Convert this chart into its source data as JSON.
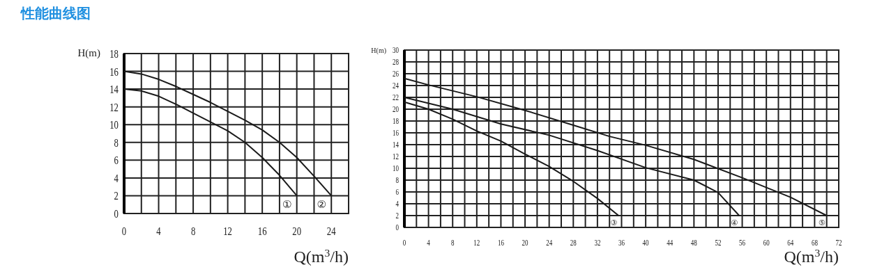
{
  "chart_data": [
    {
      "type": "line",
      "title": "性能曲线图",
      "xlabel": "Q(m$^{3}$/h)",
      "ylabel": "H(m)",
      "grid": true,
      "xlim": [
        0,
        26
      ],
      "ylim": [
        0,
        18
      ],
      "xticks": [
        0,
        {
          "value": 2,
          "label": null
        },
        4,
        {
          "value": 6,
          "label": null
        },
        8,
        {
          "value": 10,
          "label": null
        },
        12,
        {
          "value": 14,
          "label": null
        },
        16,
        {
          "value": 18,
          "label": null
        },
        20,
        {
          "value": 22,
          "label": null
        },
        24,
        {
          "value": 26,
          "label": null
        }
      ],
      "yticks": [
        0,
        2,
        4,
        6,
        8,
        10,
        12,
        14,
        16,
        18
      ],
      "series": [
        {
          "name": "①",
          "color": "#1a1a1a",
          "x": [
            0,
            2,
            4,
            6,
            8,
            10,
            12,
            14,
            16,
            18,
            20
          ],
          "values": [
            14,
            13.8,
            13.2,
            12.3,
            11.3,
            10.3,
            9.3,
            8,
            6.3,
            4.3,
            2
          ]
        },
        {
          "name": "②",
          "color": "#1a1a1a",
          "x": [
            0,
            2,
            4,
            6,
            8,
            10,
            12,
            14,
            16,
            18,
            20,
            22,
            24
          ],
          "values": [
            16,
            15.7,
            15.1,
            14.3,
            13.4,
            12.5,
            11.5,
            10.5,
            9.4,
            8,
            6.3,
            4.2,
            2
          ]
        }
      ]
    },
    {
      "type": "line",
      "xlabel": "Q(m$^{3}$/h)",
      "ylabel": "H(m)",
      "grid": true,
      "xlim": [
        0,
        72
      ],
      "ylim": [
        0,
        30
      ],
      "xticks": [
        0,
        {
          "value": 2,
          "label": null
        },
        4,
        {
          "value": 6,
          "label": null
        },
        8,
        {
          "value": 10,
          "label": null
        },
        12,
        {
          "value": 14,
          "label": null
        },
        16,
        {
          "value": 18,
          "label": null
        },
        20,
        {
          "value": 22,
          "label": null
        },
        24,
        {
          "value": 26,
          "label": null
        },
        28,
        {
          "value": 30,
          "label": null
        },
        32,
        {
          "value": 34,
          "label": null
        },
        36,
        {
          "value": 38,
          "label": null
        },
        40,
        {
          "value": 42,
          "label": null
        },
        44,
        {
          "value": 46,
          "label": null
        },
        48,
        {
          "value": 50,
          "label": null
        },
        52,
        {
          "value": 54,
          "label": null
        },
        56,
        {
          "value": 58,
          "label": null
        },
        60,
        {
          "value": 62,
          "label": null
        },
        64,
        {
          "value": 66,
          "label": null
        },
        68,
        {
          "value": 70,
          "label": null
        },
        72
      ],
      "yticks": [
        0,
        2,
        4,
        6,
        8,
        10,
        12,
        14,
        16,
        18,
        20,
        22,
        24,
        26,
        28,
        30
      ],
      "series": [
        {
          "name": "③",
          "color": "#1a1a1a",
          "x": [
            0,
            4,
            8,
            12,
            16,
            20,
            24,
            28,
            32,
            35.5
          ],
          "values": [
            21.2,
            20,
            18.3,
            16.3,
            14.6,
            12.4,
            10.3,
            7.8,
            4.9,
            2
          ]
        },
        {
          "name": "④",
          "color": "#1a1a1a",
          "x": [
            0,
            8,
            16,
            24,
            32,
            40,
            48,
            52,
            55.5
          ],
          "values": [
            22,
            20,
            17.5,
            15.6,
            13,
            10.1,
            8,
            5.9,
            2
          ]
        },
        {
          "name": "⑤",
          "color": "#1a1a1a",
          "x": [
            0,
            4,
            12,
            20,
            28,
            34,
            40,
            48,
            56,
            64,
            70
          ],
          "values": [
            25.2,
            24.1,
            22.1,
            19.8,
            17.3,
            15.4,
            13.9,
            11.5,
            8.4,
            5.1,
            2
          ]
        }
      ]
    }
  ]
}
